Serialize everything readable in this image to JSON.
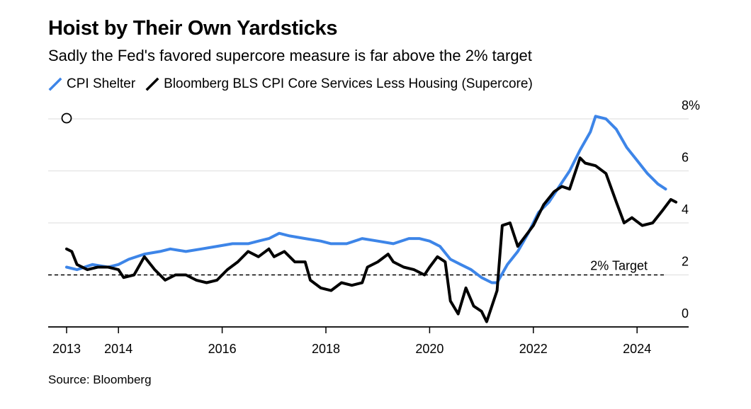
{
  "header": {
    "title": "Hoist by Their Own Yardsticks",
    "subtitle": "Sadly the Fed's favored supercore measure is far above the 2% target"
  },
  "footer": {
    "source": "Source: Bloomberg"
  },
  "chart_data": {
    "type": "line",
    "title": "Hoist by Their Own Yardsticks",
    "subtitle": "Sadly the Fed's favored supercore measure is far above the 2% target",
    "xlabel": "",
    "ylabel": "",
    "x_ticks": [
      "2013",
      "2014",
      "2016",
      "2018",
      "2020",
      "2022",
      "2024"
    ],
    "y_ticks": [
      "0",
      "2",
      "4",
      "6",
      "8%"
    ],
    "ylim": [
      0,
      8
    ],
    "xlim": [
      2012.9,
      2025.2
    ],
    "grid": true,
    "y_axis_side": "right",
    "legend_position": "top-left",
    "reference_line": {
      "value": 2,
      "label": "2% Target",
      "style": "dashed"
    },
    "series": [
      {
        "name": "CPI Shelter",
        "color": "#3d85e8",
        "points": [
          [
            2013.0,
            2.3
          ],
          [
            2013.2,
            2.2
          ],
          [
            2013.5,
            2.4
          ],
          [
            2013.8,
            2.3
          ],
          [
            2014.0,
            2.4
          ],
          [
            2014.2,
            2.6
          ],
          [
            2014.5,
            2.8
          ],
          [
            2014.8,
            2.9
          ],
          [
            2015.0,
            3.0
          ],
          [
            2015.3,
            2.9
          ],
          [
            2015.6,
            3.0
          ],
          [
            2015.9,
            3.1
          ],
          [
            2016.2,
            3.2
          ],
          [
            2016.5,
            3.2
          ],
          [
            2016.7,
            3.3
          ],
          [
            2016.9,
            3.4
          ],
          [
            2017.1,
            3.6
          ],
          [
            2017.3,
            3.5
          ],
          [
            2017.6,
            3.4
          ],
          [
            2017.9,
            3.3
          ],
          [
            2018.1,
            3.2
          ],
          [
            2018.4,
            3.2
          ],
          [
            2018.7,
            3.4
          ],
          [
            2019.0,
            3.3
          ],
          [
            2019.3,
            3.2
          ],
          [
            2019.6,
            3.4
          ],
          [
            2019.8,
            3.4
          ],
          [
            2020.0,
            3.3
          ],
          [
            2020.2,
            3.1
          ],
          [
            2020.4,
            2.6
          ],
          [
            2020.6,
            2.4
          ],
          [
            2020.8,
            2.2
          ],
          [
            2021.0,
            1.9
          ],
          [
            2021.2,
            1.7
          ],
          [
            2021.3,
            1.7
          ],
          [
            2021.5,
            2.4
          ],
          [
            2021.7,
            2.9
          ],
          [
            2021.9,
            3.6
          ],
          [
            2022.1,
            4.4
          ],
          [
            2022.3,
            4.8
          ],
          [
            2022.5,
            5.4
          ],
          [
            2022.7,
            6.0
          ],
          [
            2022.9,
            6.8
          ],
          [
            2023.1,
            7.5
          ],
          [
            2023.2,
            8.1
          ],
          [
            2023.4,
            8.0
          ],
          [
            2023.6,
            7.6
          ],
          [
            2023.8,
            6.9
          ],
          [
            2024.0,
            6.4
          ],
          [
            2024.2,
            5.9
          ],
          [
            2024.4,
            5.5
          ],
          [
            2024.55,
            5.3
          ]
        ]
      },
      {
        "name": "Bloomberg BLS CPI Core Services Less Housing (Supercore)",
        "color": "#000000",
        "points": [
          [
            2013.0,
            3.0
          ],
          [
            2013.1,
            2.9
          ],
          [
            2013.2,
            2.4
          ],
          [
            2013.4,
            2.2
          ],
          [
            2013.6,
            2.3
          ],
          [
            2013.8,
            2.3
          ],
          [
            2014.0,
            2.2
          ],
          [
            2014.1,
            1.9
          ],
          [
            2014.3,
            2.0
          ],
          [
            2014.5,
            2.7
          ],
          [
            2014.7,
            2.2
          ],
          [
            2014.9,
            1.8
          ],
          [
            2015.1,
            2.0
          ],
          [
            2015.3,
            2.0
          ],
          [
            2015.5,
            1.8
          ],
          [
            2015.7,
            1.7
          ],
          [
            2015.9,
            1.8
          ],
          [
            2016.1,
            2.2
          ],
          [
            2016.3,
            2.5
          ],
          [
            2016.5,
            2.9
          ],
          [
            2016.7,
            2.7
          ],
          [
            2016.9,
            3.0
          ],
          [
            2017.0,
            2.7
          ],
          [
            2017.2,
            2.9
          ],
          [
            2017.4,
            2.5
          ],
          [
            2017.6,
            2.5
          ],
          [
            2017.7,
            1.8
          ],
          [
            2017.9,
            1.5
          ],
          [
            2018.1,
            1.4
          ],
          [
            2018.3,
            1.7
          ],
          [
            2018.5,
            1.6
          ],
          [
            2018.7,
            1.7
          ],
          [
            2018.8,
            2.3
          ],
          [
            2019.0,
            2.5
          ],
          [
            2019.2,
            2.8
          ],
          [
            2019.3,
            2.5
          ],
          [
            2019.5,
            2.3
          ],
          [
            2019.7,
            2.2
          ],
          [
            2019.9,
            2.0
          ],
          [
            2020.0,
            2.3
          ],
          [
            2020.15,
            2.7
          ],
          [
            2020.3,
            2.5
          ],
          [
            2020.4,
            1.0
          ],
          [
            2020.55,
            0.5
          ],
          [
            2020.7,
            1.5
          ],
          [
            2020.85,
            0.8
          ],
          [
            2021.0,
            0.6
          ],
          [
            2021.1,
            0.2
          ],
          [
            2021.3,
            1.4
          ],
          [
            2021.4,
            3.9
          ],
          [
            2021.55,
            4.0
          ],
          [
            2021.7,
            3.1
          ],
          [
            2021.85,
            3.5
          ],
          [
            2022.0,
            3.9
          ],
          [
            2022.2,
            4.7
          ],
          [
            2022.4,
            5.2
          ],
          [
            2022.55,
            5.4
          ],
          [
            2022.7,
            5.3
          ],
          [
            2022.9,
            6.5
          ],
          [
            2023.0,
            6.3
          ],
          [
            2023.2,
            6.2
          ],
          [
            2023.4,
            5.9
          ],
          [
            2023.6,
            4.8
          ],
          [
            2023.75,
            4.0
          ],
          [
            2023.9,
            4.2
          ],
          [
            2024.1,
            3.9
          ],
          [
            2024.3,
            4.0
          ],
          [
            2024.5,
            4.5
          ],
          [
            2024.65,
            4.9
          ],
          [
            2024.75,
            4.8
          ]
        ]
      }
    ]
  }
}
